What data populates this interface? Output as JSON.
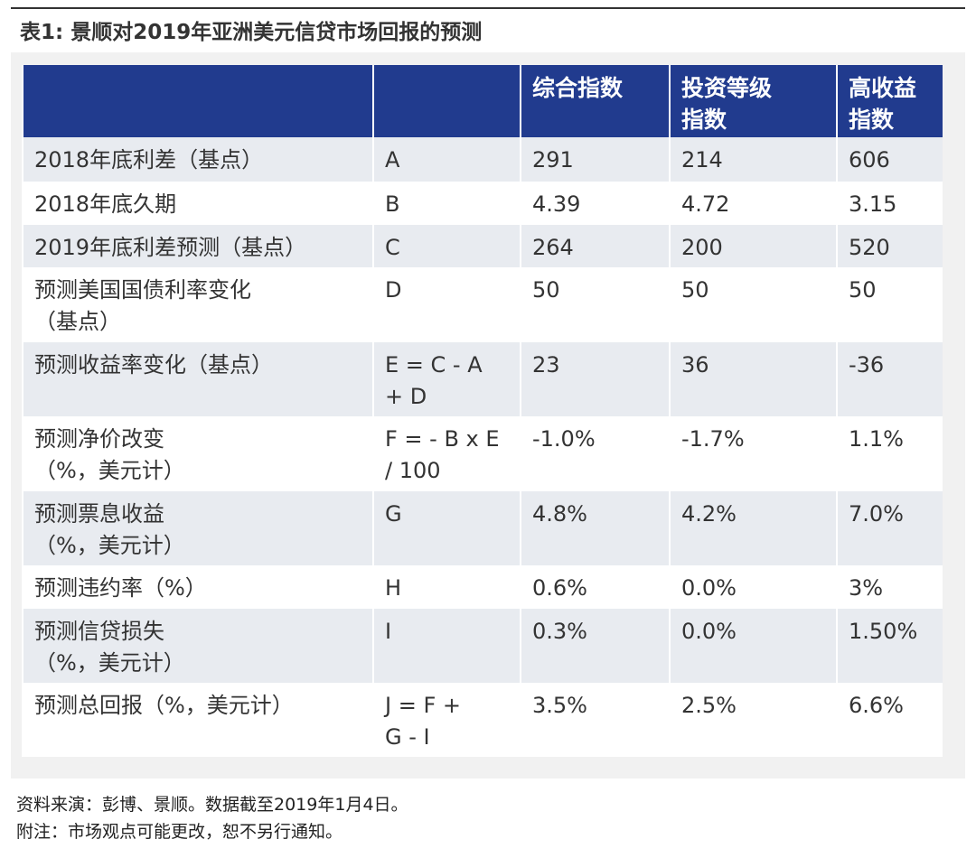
{
  "title": "表1: 景顺对2019年亚洲美元信贷市场回报的预测",
  "table": {
    "header": [
      [
        "综合指数"
      ],
      [
        "投资等级",
        "指数"
      ],
      [
        "高收益",
        "指数"
      ]
    ],
    "rows": [
      [
        [
          "2018年底利差（基点）"
        ],
        [
          "A"
        ],
        [
          "291"
        ],
        [
          "214"
        ],
        [
          "606"
        ]
      ],
      [
        [
          "2018年底久期"
        ],
        [
          "B"
        ],
        [
          "4.39"
        ],
        [
          "4.72"
        ],
        [
          "3.15"
        ]
      ],
      [
        [
          "2019年底利差预测（基点）"
        ],
        [
          "C"
        ],
        [
          "264"
        ],
        [
          "200"
        ],
        [
          "520"
        ]
      ],
      [
        [
          "预测美国国债利率变化",
          "（基点）"
        ],
        [
          "D"
        ],
        [
          "50"
        ],
        [
          "50"
        ],
        [
          "50"
        ]
      ],
      [
        [
          "预测收益率变化（基点）"
        ],
        [
          "E = C - A",
          "+ D"
        ],
        [
          "23"
        ],
        [
          "36"
        ],
        [
          "-36"
        ]
      ],
      [
        [
          "预测净价改变",
          "（%，美元计）"
        ],
        [
          "F = - B x E",
          "/ 100"
        ],
        [
          "-1.0%"
        ],
        [
          "-1.7%"
        ],
        [
          "1.1%"
        ]
      ],
      [
        [
          "预测票息收益",
          "（%，美元计）"
        ],
        [
          "G"
        ],
        [
          "4.8%"
        ],
        [
          "4.2%"
        ],
        [
          "7.0%"
        ]
      ],
      [
        [
          "预测违约率（%）"
        ],
        [
          "H"
        ],
        [
          "0.6%"
        ],
        [
          "0.0%"
        ],
        [
          "3%"
        ]
      ],
      [
        [
          "预测信贷损失",
          "（%，美元计）"
        ],
        [
          "I"
        ],
        [
          "0.3%"
        ],
        [
          "0.0%"
        ],
        [
          "1.50%"
        ]
      ],
      [
        [
          "预测总回报（%，美元计）"
        ],
        [
          "J = F +",
          "G - I"
        ],
        [
          "3.5%"
        ],
        [
          "2.5%"
        ],
        [
          "6.6%"
        ]
      ]
    ]
  },
  "footnotes": [
    "资料来演：彭博、景顺。数据截至2019年1月4日。",
    "附注：市场观点可能更改，恕不另行通知。"
  ]
}
